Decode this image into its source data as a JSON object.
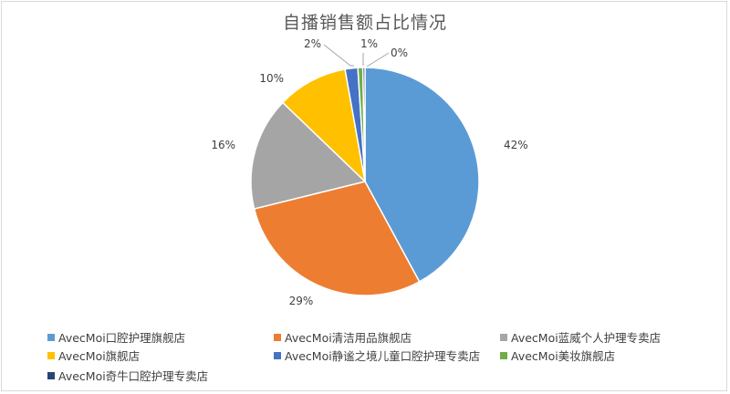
{
  "chart_data": {
    "type": "pie",
    "title": "自播销售额占比情况",
    "series": [
      {
        "name": "AvecMoi口腔护理旗舰店",
        "value": 42,
        "label": "42%",
        "color": "#5b9bd5"
      },
      {
        "name": "AvecMoi清洁用品旗舰店",
        "value": 29,
        "label": "29%",
        "color": "#ed7d31"
      },
      {
        "name": "AvecMoi蓝威个人护理专卖店",
        "value": 16,
        "label": "16%",
        "color": "#a5a5a5"
      },
      {
        "name": "AvecMoi旗舰店",
        "value": 10,
        "label": "10%",
        "color": "#ffc000"
      },
      {
        "name": "AvecMoi静谧之境儿童口腔护理专卖店",
        "value": 1.8,
        "label": "2%",
        "color": "#4472c4"
      },
      {
        "name": "AvecMoi美妆旗舰店",
        "value": 0.7,
        "label": "1%",
        "color": "#70ad47"
      },
      {
        "name": "AvecMoi奇牛口腔护理专卖店",
        "value": 0.3,
        "label": "0%",
        "color": "#264478"
      }
    ],
    "legend_position": "bottom"
  }
}
